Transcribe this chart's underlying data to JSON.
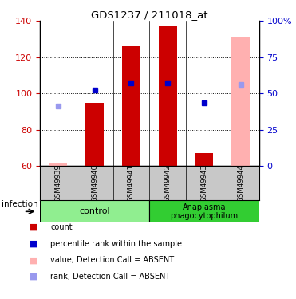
{
  "title": "GDS1237 / 211018_at",
  "samples": [
    "GSM49939",
    "GSM49940",
    "GSM49941",
    "GSM49942",
    "GSM49943",
    "GSM49944"
  ],
  "ylim_left": [
    60,
    140
  ],
  "ylim_right": [
    0,
    100
  ],
  "yticks_left": [
    60,
    80,
    100,
    120,
    140
  ],
  "yticks_right": [
    0,
    25,
    50,
    75,
    100
  ],
  "yticklabels_right": [
    "0",
    "25",
    "50",
    "75",
    "100%"
  ],
  "bar_values": [
    null,
    95,
    126,
    137,
    67,
    null
  ],
  "blue_dots": [
    null,
    102,
    106,
    106,
    95,
    null
  ],
  "pink_bars": [
    62,
    null,
    null,
    null,
    null,
    131
  ],
  "light_blue_dots": [
    93,
    null,
    null,
    null,
    null,
    105
  ],
  "group_labels": [
    "control",
    "Anaplasma\nphagocytophilum"
  ],
  "group_bg_colors": [
    "#90ee90",
    "#32cd32"
  ],
  "sample_bg_color": "#c8c8c8",
  "left_axis_color": "#cc0000",
  "right_axis_color": "#0000cc",
  "bar_width": 0.5,
  "red_bar_color": "#cc0000",
  "pink_bar_color": "#ffb0b0",
  "blue_dot_color": "#0000cc",
  "light_blue_dot_color": "#9999ee"
}
